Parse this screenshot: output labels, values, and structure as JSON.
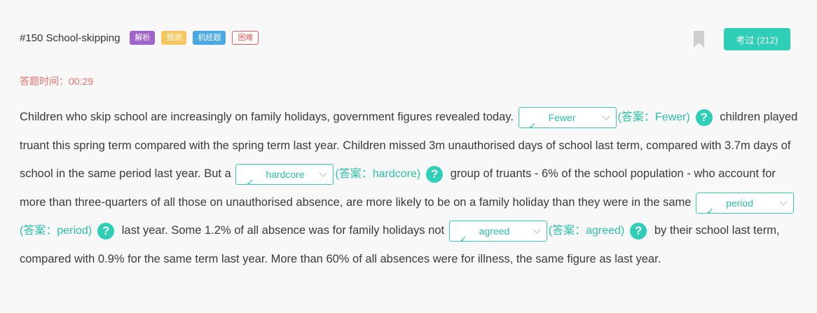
{
  "header": {
    "title": "#150 School-skipping",
    "tags": [
      "解析",
      "预测",
      "机经题",
      "困难"
    ],
    "pass_button": "考过 (212)"
  },
  "timer": {
    "label": "答题时间：",
    "value": "00:29"
  },
  "passage": {
    "seg0": "Children who skip school are increasingly on family holidays, government figures revealed today.",
    "blank1": {
      "value": "Fewer",
      "answer": "(答案：Fewer)"
    },
    "seg1": "children played truant this spring term compared with the spring term last year. Children missed 3m unauthorised days of school last term, compared with 3.7m days of school in the same period last year. But a",
    "blank2": {
      "value": "hardcore",
      "answer": "(答案：hardcore)"
    },
    "seg2": "group of truants - 6% of the school population - who account for more than three-quarters of all those on unauthorised absence, are more likely to be on a family holiday than they were in the same",
    "blank3": {
      "value": "period",
      "answer": "(答案：period)"
    },
    "seg3": "last year. Some 1.2% of all absence was for family holidays not",
    "blank4": {
      "value": "agreed",
      "answer": "(答案：agreed)"
    },
    "seg4": "by their school last term, compared with 0.9% for the same term last year. More than 60% of all absences were for illness, the same figure as last year."
  },
  "icons": {
    "check": "✓",
    "help": "?"
  },
  "colors": {
    "accent": "#2fcfb7",
    "timer": "#e9706a"
  }
}
